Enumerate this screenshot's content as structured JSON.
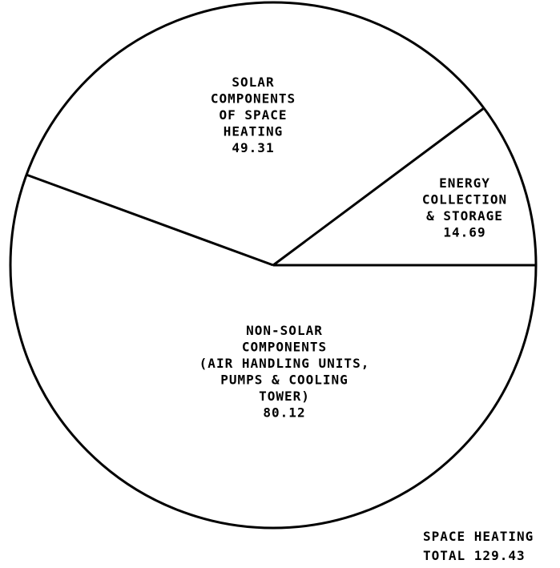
{
  "chart_data": {
    "type": "pie",
    "slices": [
      {
        "label_lines": [
          "ENERGY",
          "COLLECTION",
          "& STORAGE"
        ],
        "value": 14.69
      },
      {
        "label_lines": [
          "SOLAR",
          "COMPONENTS",
          "OF SPACE",
          "HEATING"
        ],
        "value": 49.31
      },
      {
        "label_lines": [
          "NON-SOLAR",
          "COMPONENTS",
          "(AIR HANDLING UNITS,",
          "PUMPS & COOLING",
          "TOWER)"
        ],
        "value": 80.12
      }
    ],
    "total": {
      "line1": "SPACE HEATING",
      "line2": "TOTAL 129.43"
    },
    "colors": {
      "stroke": "#000000",
      "fill": "#ffffff"
    }
  }
}
